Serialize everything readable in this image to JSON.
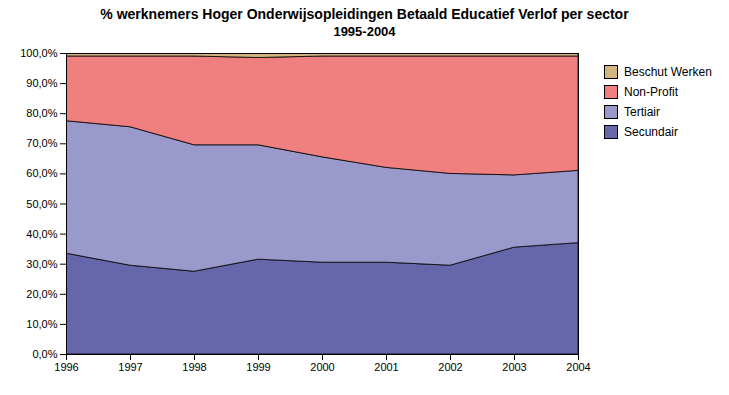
{
  "chart_data": {
    "type": "area",
    "stacked": true,
    "title": "% werknemers Hoger Onderwijsopleidingen Betaald Educatief Verlof per sector",
    "subtitle": "1995-2004",
    "x": [
      1996,
      1997,
      1998,
      1999,
      2000,
      2001,
      2002,
      2003,
      2004
    ],
    "series": [
      {
        "name": "Secundair",
        "color": "#6666aa",
        "values": [
          33.5,
          29.5,
          27.5,
          31.5,
          30.5,
          30.5,
          29.5,
          35.5,
          37.0
        ]
      },
      {
        "name": "Tertiair",
        "color": "#9999cc",
        "values": [
          44.0,
          46.0,
          42.0,
          38.0,
          35.0,
          31.5,
          30.5,
          24.0,
          24.0
        ]
      },
      {
        "name": "Non-Profit",
        "color": "#f08080",
        "values": [
          21.5,
          23.5,
          29.5,
          29.0,
          33.5,
          37.0,
          39.0,
          39.5,
          38.0
        ]
      },
      {
        "name": "Beschut Werken",
        "color": "#d4b483",
        "values": [
          1.0,
          1.0,
          1.0,
          1.5,
          1.0,
          1.0,
          1.0,
          1.0,
          1.0
        ]
      }
    ],
    "xlim": [
      1996,
      2004
    ],
    "xticks": [
      1996,
      1997,
      1998,
      1999,
      2000,
      2001,
      2002,
      2003,
      2004
    ],
    "ylim": [
      0,
      100
    ],
    "yticks": [
      {
        "value": 0,
        "label": "0,0%"
      },
      {
        "value": 10,
        "label": "10,0%"
      },
      {
        "value": 20,
        "label": "20,0%"
      },
      {
        "value": 30,
        "label": "30,0%"
      },
      {
        "value": 40,
        "label": "40,0%"
      },
      {
        "value": 50,
        "label": "50,0%"
      },
      {
        "value": 60,
        "label": "60,0%"
      },
      {
        "value": 70,
        "label": "70,0%"
      },
      {
        "value": 80,
        "label": "80,0%"
      },
      {
        "value": 90,
        "label": "90,0%"
      },
      {
        "value": 100,
        "label": "100,0%"
      }
    ],
    "grid": true,
    "legend": "right"
  }
}
